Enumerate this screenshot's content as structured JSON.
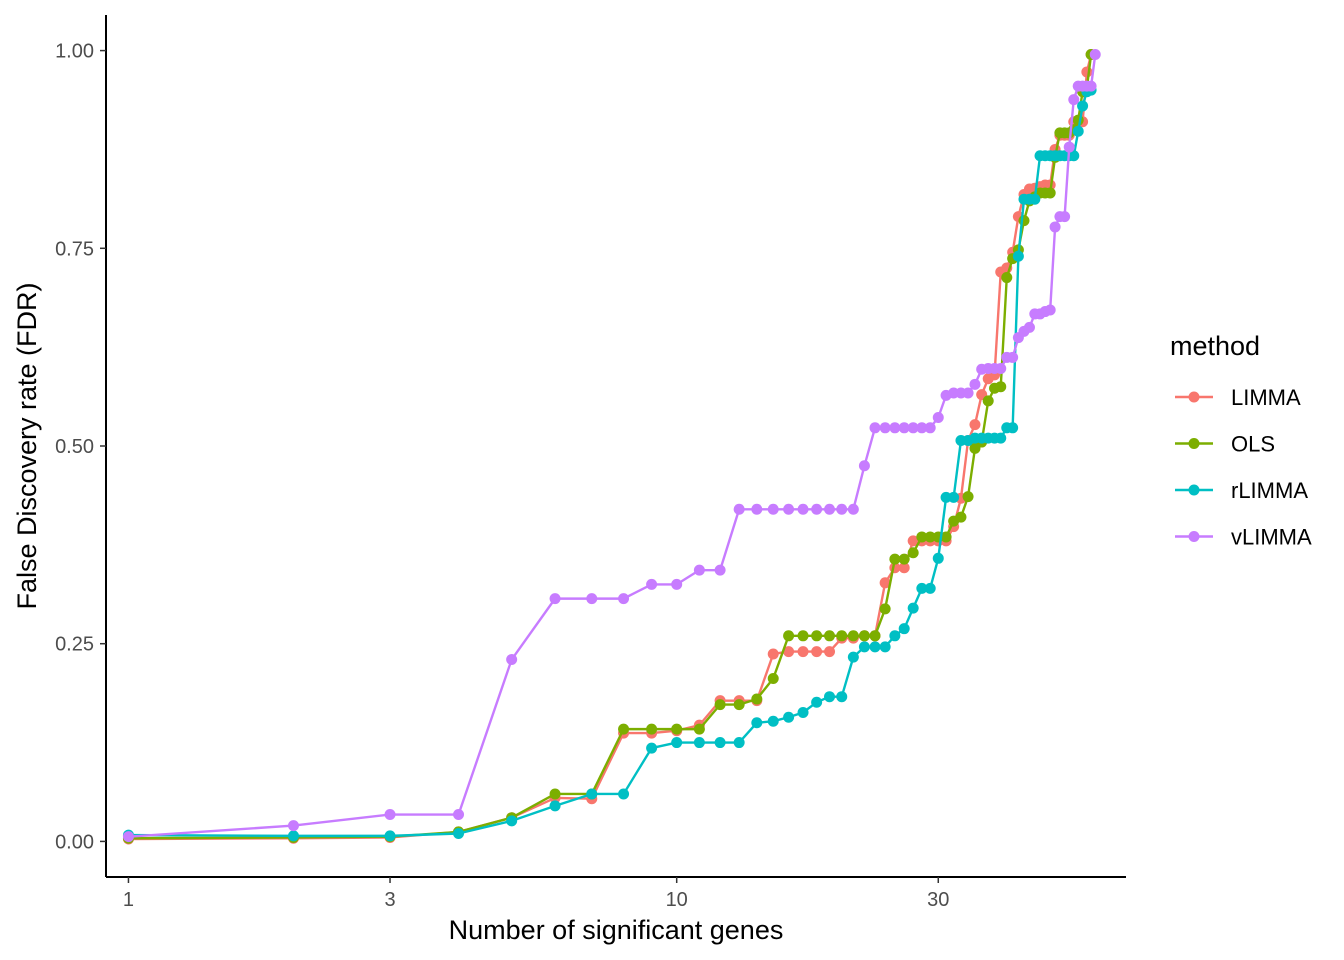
{
  "chart_data": {
    "type": "line",
    "title": "",
    "xlabel": "Number of significant genes",
    "ylabel": "False Discovery rate (FDR)",
    "x_scale": "log10",
    "xlim": [
      0.91,
      66
    ],
    "ylim": [
      -0.045,
      1.045
    ],
    "x_ticks": [
      1,
      3,
      10,
      30
    ],
    "x_tick_labels": [
      "1",
      "3",
      "10",
      "30"
    ],
    "y_ticks": [
      0,
      0.25,
      0.5,
      0.75,
      1.0
    ],
    "y_tick_labels": [
      "0.00",
      "0.25",
      "0.50",
      "0.75",
      "1.00"
    ],
    "grid": false,
    "legend": {
      "title": "method",
      "position": "right"
    },
    "series": [
      {
        "name": "LIMMA",
        "color": "#F8766D",
        "points": [
          [
            1,
            0.003
          ],
          [
            2,
            0.004
          ],
          [
            3,
            0.005
          ],
          [
            4,
            0.012
          ],
          [
            5,
            0.03
          ],
          [
            6,
            0.055
          ],
          [
            7,
            0.054
          ],
          [
            8,
            0.137
          ],
          [
            9,
            0.137
          ],
          [
            10,
            0.14
          ],
          [
            11,
            0.147
          ],
          [
            12,
            0.178
          ],
          [
            13,
            0.178
          ],
          [
            14,
            0.178
          ],
          [
            15,
            0.237
          ],
          [
            16,
            0.24
          ],
          [
            17,
            0.24
          ],
          [
            18,
            0.24
          ],
          [
            19,
            0.24
          ],
          [
            20,
            0.257
          ],
          [
            21,
            0.257
          ],
          [
            22,
            0.26
          ],
          [
            23,
            0.26
          ],
          [
            24,
            0.327
          ],
          [
            25,
            0.346
          ],
          [
            26,
            0.346
          ],
          [
            27,
            0.38
          ],
          [
            28,
            0.38
          ],
          [
            29,
            0.38
          ],
          [
            30,
            0.38
          ],
          [
            31,
            0.38
          ],
          [
            32,
            0.398
          ],
          [
            33,
            0.434
          ],
          [
            34,
            0.507
          ],
          [
            35,
            0.527
          ],
          [
            36,
            0.565
          ],
          [
            37,
            0.585
          ],
          [
            38,
            0.59
          ],
          [
            39,
            0.72
          ],
          [
            40,
            0.725
          ],
          [
            41,
            0.745
          ],
          [
            42,
            0.79
          ],
          [
            43,
            0.818
          ],
          [
            44,
            0.825
          ],
          [
            45,
            0.826
          ],
          [
            46,
            0.828
          ],
          [
            47,
            0.83
          ],
          [
            48,
            0.83
          ],
          [
            49,
            0.875
          ],
          [
            50,
            0.893
          ],
          [
            51,
            0.893
          ],
          [
            52,
            0.893
          ],
          [
            53,
            0.91
          ],
          [
            54,
            0.91
          ],
          [
            55,
            0.91
          ],
          [
            56,
            0.973
          ],
          [
            57,
            0.995
          ]
        ]
      },
      {
        "name": "OLS",
        "color": "#7CAE00",
        "points": [
          [
            1,
            0.004
          ],
          [
            2,
            0.005
          ],
          [
            3,
            0.006
          ],
          [
            4,
            0.012
          ],
          [
            5,
            0.03
          ],
          [
            6,
            0.06
          ],
          [
            7,
            0.06
          ],
          [
            8,
            0.142
          ],
          [
            9,
            0.142
          ],
          [
            10,
            0.142
          ],
          [
            11,
            0.142
          ],
          [
            12,
            0.173
          ],
          [
            13,
            0.173
          ],
          [
            14,
            0.18
          ],
          [
            15,
            0.206
          ],
          [
            16,
            0.26
          ],
          [
            17,
            0.26
          ],
          [
            18,
            0.26
          ],
          [
            19,
            0.26
          ],
          [
            20,
            0.26
          ],
          [
            21,
            0.26
          ],
          [
            22,
            0.26
          ],
          [
            23,
            0.26
          ],
          [
            24,
            0.294
          ],
          [
            25,
            0.357
          ],
          [
            26,
            0.357
          ],
          [
            27,
            0.365
          ],
          [
            28,
            0.385
          ],
          [
            29,
            0.385
          ],
          [
            30,
            0.385
          ],
          [
            31,
            0.385
          ],
          [
            32,
            0.405
          ],
          [
            33,
            0.41
          ],
          [
            34,
            0.436
          ],
          [
            35,
            0.497
          ],
          [
            36,
            0.505
          ],
          [
            37,
            0.557
          ],
          [
            38,
            0.573
          ],
          [
            39,
            0.575
          ],
          [
            40,
            0.713
          ],
          [
            41,
            0.737
          ],
          [
            42,
            0.748
          ],
          [
            43,
            0.785
          ],
          [
            44,
            0.81
          ],
          [
            45,
            0.815
          ],
          [
            46,
            0.82
          ],
          [
            47,
            0.82
          ],
          [
            48,
            0.82
          ],
          [
            49,
            0.865
          ],
          [
            50,
            0.896
          ],
          [
            51,
            0.896
          ],
          [
            52,
            0.896
          ],
          [
            53,
            0.9
          ],
          [
            54,
            0.912
          ],
          [
            55,
            0.948
          ],
          [
            56,
            0.953
          ],
          [
            57,
            0.995
          ]
        ]
      },
      {
        "name": "rLIMMA",
        "color": "#00BFC4",
        "points": [
          [
            1,
            0.008
          ],
          [
            2,
            0.007
          ],
          [
            3,
            0.007
          ],
          [
            4,
            0.01
          ],
          [
            5,
            0.026
          ],
          [
            6,
            0.045
          ],
          [
            7,
            0.06
          ],
          [
            8,
            0.06
          ],
          [
            9,
            0.118
          ],
          [
            10,
            0.125
          ],
          [
            11,
            0.125
          ],
          [
            12,
            0.125
          ],
          [
            13,
            0.125
          ],
          [
            14,
            0.15
          ],
          [
            15,
            0.152
          ],
          [
            16,
            0.157
          ],
          [
            17,
            0.163
          ],
          [
            18,
            0.176
          ],
          [
            19,
            0.183
          ],
          [
            20,
            0.183
          ],
          [
            21,
            0.233
          ],
          [
            22,
            0.246
          ],
          [
            23,
            0.246
          ],
          [
            24,
            0.246
          ],
          [
            25,
            0.26
          ],
          [
            26,
            0.269
          ],
          [
            27,
            0.295
          ],
          [
            28,
            0.32
          ],
          [
            29,
            0.32
          ],
          [
            30,
            0.358
          ],
          [
            31,
            0.435
          ],
          [
            32,
            0.435
          ],
          [
            33,
            0.507
          ],
          [
            34,
            0.507
          ],
          [
            35,
            0.51
          ],
          [
            36,
            0.51
          ],
          [
            37,
            0.51
          ],
          [
            38,
            0.51
          ],
          [
            39,
            0.51
          ],
          [
            40,
            0.523
          ],
          [
            41,
            0.523
          ],
          [
            42,
            0.74
          ],
          [
            43,
            0.812
          ],
          [
            44,
            0.812
          ],
          [
            45,
            0.812
          ],
          [
            46,
            0.867
          ],
          [
            47,
            0.867
          ],
          [
            48,
            0.867
          ],
          [
            49,
            0.867
          ],
          [
            50,
            0.867
          ],
          [
            51,
            0.867
          ],
          [
            52,
            0.867
          ],
          [
            53,
            0.867
          ],
          [
            54,
            0.898
          ],
          [
            55,
            0.93
          ],
          [
            56,
            0.948
          ],
          [
            57,
            0.95
          ]
        ]
      },
      {
        "name": "vLIMMA",
        "color": "#C77CFF",
        "points": [
          [
            1,
            0.006
          ],
          [
            2,
            0.02
          ],
          [
            3,
            0.034
          ],
          [
            4,
            0.034
          ],
          [
            5,
            0.23
          ],
          [
            6,
            0.307
          ],
          [
            7,
            0.307
          ],
          [
            8,
            0.307
          ],
          [
            9,
            0.325
          ],
          [
            10,
            0.325
          ],
          [
            11,
            0.343
          ],
          [
            12,
            0.343
          ],
          [
            13,
            0.42
          ],
          [
            14,
            0.42
          ],
          [
            15,
            0.42
          ],
          [
            16,
            0.42
          ],
          [
            17,
            0.42
          ],
          [
            18,
            0.42
          ],
          [
            19,
            0.42
          ],
          [
            20,
            0.42
          ],
          [
            21,
            0.42
          ],
          [
            22,
            0.475
          ],
          [
            23,
            0.523
          ],
          [
            24,
            0.523
          ],
          [
            25,
            0.523
          ],
          [
            26,
            0.523
          ],
          [
            27,
            0.523
          ],
          [
            28,
            0.523
          ],
          [
            29,
            0.523
          ],
          [
            30,
            0.536
          ],
          [
            31,
            0.564
          ],
          [
            32,
            0.567
          ],
          [
            33,
            0.567
          ],
          [
            34,
            0.567
          ],
          [
            35,
            0.578
          ],
          [
            36,
            0.597
          ],
          [
            37,
            0.598
          ],
          [
            38,
            0.598
          ],
          [
            39,
            0.598
          ],
          [
            40,
            0.612
          ],
          [
            41,
            0.612
          ],
          [
            42,
            0.637
          ],
          [
            43,
            0.645
          ],
          [
            44,
            0.65
          ],
          [
            45,
            0.667
          ],
          [
            46,
            0.667
          ],
          [
            47,
            0.67
          ],
          [
            48,
            0.672
          ],
          [
            49,
            0.777
          ],
          [
            50,
            0.79
          ],
          [
            51,
            0.79
          ],
          [
            52,
            0.878
          ],
          [
            53,
            0.938
          ],
          [
            54,
            0.955
          ],
          [
            55,
            0.955
          ],
          [
            56,
            0.955
          ],
          [
            57,
            0.955
          ],
          [
            58,
            0.995
          ]
        ]
      }
    ]
  }
}
